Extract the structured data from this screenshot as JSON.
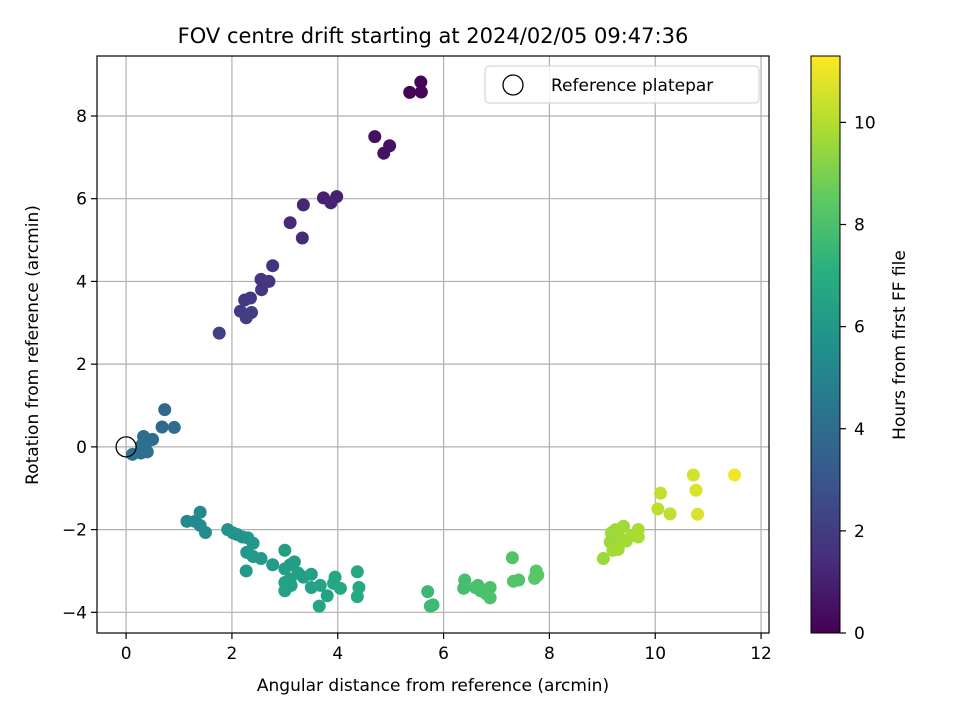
{
  "chart_data": {
    "type": "scatter",
    "title": "FOV centre drift starting at 2024/02/05 09:47:36",
    "xlabel": "Angular distance from reference (arcmin)",
    "ylabel": "Rotation from reference (arcmin)",
    "xlim": [
      -0.55,
      12.15
    ],
    "ylim": [
      -4.5,
      9.45
    ],
    "xticks": [
      0,
      2,
      4,
      6,
      8,
      10,
      12
    ],
    "yticks": [
      -4,
      -2,
      0,
      2,
      4,
      6,
      8
    ],
    "grid": true,
    "legend": {
      "entries": [
        "Reference platepar"
      ],
      "placement": "top-right"
    },
    "reference_point": {
      "x": 0,
      "y": 0,
      "label": "Reference platepar"
    },
    "colorbar": {
      "label": "Hours from first FF file",
      "range": [
        0,
        11.3
      ],
      "ticks": [
        0,
        2,
        4,
        6,
        8,
        10
      ],
      "colormap": "viridis"
    },
    "points": [
      {
        "x": 5.57,
        "y": 8.82,
        "c": 0.05
      },
      {
        "x": 5.36,
        "y": 8.57,
        "c": 0.1
      },
      {
        "x": 5.58,
        "y": 8.58,
        "c": 0.15
      },
      {
        "x": 4.7,
        "y": 7.5,
        "c": 0.5
      },
      {
        "x": 4.98,
        "y": 7.28,
        "c": 0.55
      },
      {
        "x": 4.87,
        "y": 7.1,
        "c": 0.6
      },
      {
        "x": 3.73,
        "y": 6.02,
        "c": 1.0
      },
      {
        "x": 3.98,
        "y": 6.05,
        "c": 1.05
      },
      {
        "x": 3.87,
        "y": 5.9,
        "c": 1.1
      },
      {
        "x": 3.35,
        "y": 5.85,
        "c": 1.2
      },
      {
        "x": 3.1,
        "y": 5.42,
        "c": 1.3
      },
      {
        "x": 3.33,
        "y": 5.05,
        "c": 1.4
      },
      {
        "x": 2.77,
        "y": 4.38,
        "c": 1.7
      },
      {
        "x": 2.55,
        "y": 4.05,
        "c": 1.75
      },
      {
        "x": 2.7,
        "y": 4.0,
        "c": 1.8
      },
      {
        "x": 2.56,
        "y": 3.8,
        "c": 1.85
      },
      {
        "x": 2.35,
        "y": 3.6,
        "c": 1.9
      },
      {
        "x": 2.24,
        "y": 3.55,
        "c": 1.95
      },
      {
        "x": 2.16,
        "y": 3.28,
        "c": 2.0
      },
      {
        "x": 2.37,
        "y": 3.25,
        "c": 2.05
      },
      {
        "x": 2.27,
        "y": 3.12,
        "c": 2.1
      },
      {
        "x": 1.76,
        "y": 2.75,
        "c": 2.2
      },
      {
        "x": 0.73,
        "y": 0.9,
        "c": 3.9
      },
      {
        "x": 0.68,
        "y": 0.48,
        "c": 3.95
      },
      {
        "x": 0.91,
        "y": 0.47,
        "c": 4.0
      },
      {
        "x": 0.33,
        "y": 0.25,
        "c": 4.05
      },
      {
        "x": 0.5,
        "y": 0.18,
        "c": 4.1
      },
      {
        "x": 0.42,
        "y": 0.15,
        "c": 4.1
      },
      {
        "x": 0.3,
        "y": 0.05,
        "c": 4.15
      },
      {
        "x": 0.35,
        "y": -0.05,
        "c": 4.2
      },
      {
        "x": 0.4,
        "y": -0.12,
        "c": 4.2
      },
      {
        "x": 0.28,
        "y": -0.15,
        "c": 4.25
      },
      {
        "x": 0.12,
        "y": -0.18,
        "c": 4.3
      },
      {
        "x": 1.4,
        "y": -1.58,
        "c": 5.3
      },
      {
        "x": 1.15,
        "y": -1.8,
        "c": 5.3
      },
      {
        "x": 1.3,
        "y": -1.8,
        "c": 5.35
      },
      {
        "x": 1.4,
        "y": -1.9,
        "c": 5.4
      },
      {
        "x": 1.5,
        "y": -2.07,
        "c": 5.45
      },
      {
        "x": 1.92,
        "y": -2.0,
        "c": 5.8
      },
      {
        "x": 2.02,
        "y": -2.08,
        "c": 5.85
      },
      {
        "x": 2.1,
        "y": -2.12,
        "c": 5.9
      },
      {
        "x": 2.2,
        "y": -2.18,
        "c": 5.9
      },
      {
        "x": 2.3,
        "y": -2.2,
        "c": 5.95
      },
      {
        "x": 2.4,
        "y": -2.33,
        "c": 6.0
      },
      {
        "x": 2.28,
        "y": -2.55,
        "c": 6.05
      },
      {
        "x": 2.4,
        "y": -2.65,
        "c": 6.1
      },
      {
        "x": 2.55,
        "y": -2.7,
        "c": 6.1
      },
      {
        "x": 2.27,
        "y": -3.0,
        "c": 6.15
      },
      {
        "x": 2.77,
        "y": -2.85,
        "c": 6.2
      },
      {
        "x": 3.0,
        "y": -2.5,
        "c": 6.3
      },
      {
        "x": 3.1,
        "y": -2.85,
        "c": 6.3
      },
      {
        "x": 3.18,
        "y": -2.78,
        "c": 6.35
      },
      {
        "x": 3.0,
        "y": -2.95,
        "c": 6.35
      },
      {
        "x": 3.25,
        "y": -3.05,
        "c": 6.4
      },
      {
        "x": 3.35,
        "y": -3.15,
        "c": 6.4
      },
      {
        "x": 3.1,
        "y": -3.2,
        "c": 6.45
      },
      {
        "x": 3.5,
        "y": -3.08,
        "c": 6.45
      },
      {
        "x": 3.0,
        "y": -3.28,
        "c": 6.5
      },
      {
        "x": 3.12,
        "y": -3.35,
        "c": 6.5
      },
      {
        "x": 3.0,
        "y": -3.48,
        "c": 6.55
      },
      {
        "x": 3.5,
        "y": -3.4,
        "c": 6.55
      },
      {
        "x": 3.67,
        "y": -3.35,
        "c": 6.6
      },
      {
        "x": 3.8,
        "y": -3.6,
        "c": 6.6
      },
      {
        "x": 3.65,
        "y": -3.85,
        "c": 6.65
      },
      {
        "x": 3.95,
        "y": -3.15,
        "c": 6.7
      },
      {
        "x": 4.05,
        "y": -3.42,
        "c": 6.7
      },
      {
        "x": 3.92,
        "y": -3.3,
        "c": 6.75
      },
      {
        "x": 4.37,
        "y": -3.02,
        "c": 6.8
      },
      {
        "x": 4.4,
        "y": -3.4,
        "c": 6.85
      },
      {
        "x": 4.37,
        "y": -3.62,
        "c": 6.9
      },
      {
        "x": 5.7,
        "y": -3.5,
        "c": 7.6
      },
      {
        "x": 5.8,
        "y": -3.82,
        "c": 7.65
      },
      {
        "x": 5.75,
        "y": -3.85,
        "c": 7.7
      },
      {
        "x": 6.4,
        "y": -3.22,
        "c": 7.9
      },
      {
        "x": 6.38,
        "y": -3.42,
        "c": 7.9
      },
      {
        "x": 6.6,
        "y": -3.4,
        "c": 7.95
      },
      {
        "x": 6.65,
        "y": -3.35,
        "c": 8.0
      },
      {
        "x": 6.7,
        "y": -3.48,
        "c": 8.0
      },
      {
        "x": 6.8,
        "y": -3.55,
        "c": 8.05
      },
      {
        "x": 6.88,
        "y": -3.4,
        "c": 8.05
      },
      {
        "x": 6.88,
        "y": -3.65,
        "c": 8.1
      },
      {
        "x": 7.3,
        "y": -2.68,
        "c": 8.2
      },
      {
        "x": 7.32,
        "y": -3.25,
        "c": 8.25
      },
      {
        "x": 7.42,
        "y": -3.22,
        "c": 8.25
      },
      {
        "x": 7.75,
        "y": -3.0,
        "c": 8.35
      },
      {
        "x": 7.78,
        "y": -3.1,
        "c": 8.4
      },
      {
        "x": 7.72,
        "y": -3.18,
        "c": 8.4
      },
      {
        "x": 9.02,
        "y": -2.7,
        "c": 9.6
      },
      {
        "x": 9.15,
        "y": -2.3,
        "c": 9.6
      },
      {
        "x": 9.17,
        "y": -2.08,
        "c": 9.65
      },
      {
        "x": 9.25,
        "y": -2.0,
        "c": 9.65
      },
      {
        "x": 9.4,
        "y": -1.92,
        "c": 9.7
      },
      {
        "x": 9.3,
        "y": -2.02,
        "c": 9.7
      },
      {
        "x": 9.35,
        "y": -2.22,
        "c": 9.75
      },
      {
        "x": 9.45,
        "y": -2.28,
        "c": 9.75
      },
      {
        "x": 9.3,
        "y": -2.48,
        "c": 9.8
      },
      {
        "x": 9.2,
        "y": -2.5,
        "c": 9.8
      },
      {
        "x": 9.55,
        "y": -2.15,
        "c": 9.85
      },
      {
        "x": 9.68,
        "y": -2.0,
        "c": 9.85
      },
      {
        "x": 9.68,
        "y": -2.18,
        "c": 9.9
      },
      {
        "x": 10.05,
        "y": -1.5,
        "c": 10.2
      },
      {
        "x": 10.28,
        "y": -1.62,
        "c": 10.25
      },
      {
        "x": 10.1,
        "y": -1.12,
        "c": 10.3
      },
      {
        "x": 10.72,
        "y": -0.68,
        "c": 10.6
      },
      {
        "x": 10.77,
        "y": -1.05,
        "c": 10.65
      },
      {
        "x": 10.8,
        "y": -1.63,
        "c": 10.7
      },
      {
        "x": 11.5,
        "y": -0.68,
        "c": 11.1
      }
    ]
  }
}
